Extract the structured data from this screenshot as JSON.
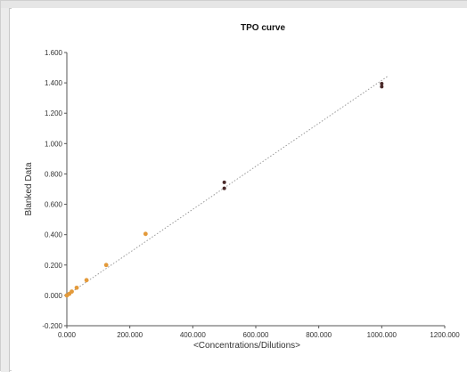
{
  "chart_data": {
    "type": "scatter",
    "title": "TPO curve",
    "xlabel": "<Concentrations/Dilutions>",
    "ylabel": "Blanked Data",
    "xlim": [
      0,
      1200
    ],
    "ylim": [
      -0.2,
      1.6
    ],
    "x_ticks": [
      "0.000",
      "200.000",
      "400.000",
      "600.000",
      "800.000",
      "1000.000",
      "1200.000"
    ],
    "y_ticks": [
      "-0.200",
      "0.000",
      "0.200",
      "0.400",
      "0.600",
      "0.800",
      "1.000",
      "1.200",
      "1.400",
      "1.600"
    ],
    "series": [
      {
        "points": [
          {
            "x": 0,
            "y": 0.0
          },
          {
            "x": 7.8,
            "y": 0.01
          },
          {
            "x": 15.6,
            "y": 0.025
          },
          {
            "x": 31.25,
            "y": 0.05
          },
          {
            "x": 62.5,
            "y": 0.1
          },
          {
            "x": 125,
            "y": 0.2
          },
          {
            "x": 250,
            "y": 0.405
          }
        ],
        "color": "#e39a3b"
      },
      {
        "points": [
          {
            "x": 500,
            "y": 0.745
          },
          {
            "x": 500,
            "y": 0.705
          },
          {
            "x": 1000,
            "y": 1.395
          },
          {
            "x": 1000,
            "y": 1.375
          }
        ],
        "color": "#4a2a2a"
      }
    ],
    "fit_line": {
      "x": [
        0,
        1020
      ],
      "y": [
        0.0,
        1.445
      ],
      "color": "#9a9a9a",
      "style": "dotted"
    },
    "grid": false,
    "legend": "none"
  }
}
